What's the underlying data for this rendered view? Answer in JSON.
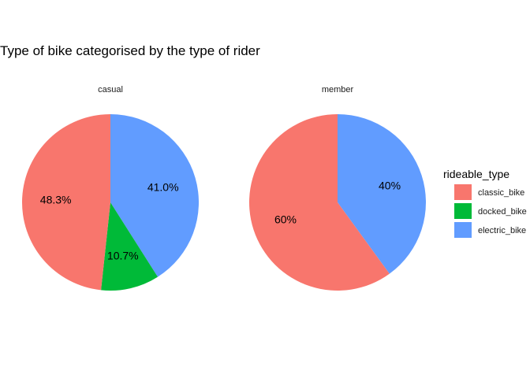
{
  "chart_data": {
    "type": "pie",
    "title": "Type of bike categorised by the type of rider",
    "legend": {
      "title": "rideable_type",
      "placement": "right",
      "entries": [
        {
          "name": "classic_bike",
          "color": "#F8766D"
        },
        {
          "name": "docked_bike",
          "color": "#00BA38"
        },
        {
          "name": "electric_bike",
          "color": "#619CFF"
        }
      ]
    },
    "facets": [
      {
        "label": "casual",
        "slices": [
          {
            "category": "electric_bike",
            "value": 41.0,
            "label": "41.0%"
          },
          {
            "category": "docked_bike",
            "value": 10.7,
            "label": "10.7%"
          },
          {
            "category": "classic_bike",
            "value": 48.3,
            "label": "48.3%"
          }
        ]
      },
      {
        "label": "member",
        "slices": [
          {
            "category": "electric_bike",
            "value": 40,
            "label": "40%"
          },
          {
            "category": "docked_bike",
            "value": 0,
            "label": ""
          },
          {
            "category": "classic_bike",
            "value": 60,
            "label": "60%"
          }
        ]
      }
    ]
  }
}
